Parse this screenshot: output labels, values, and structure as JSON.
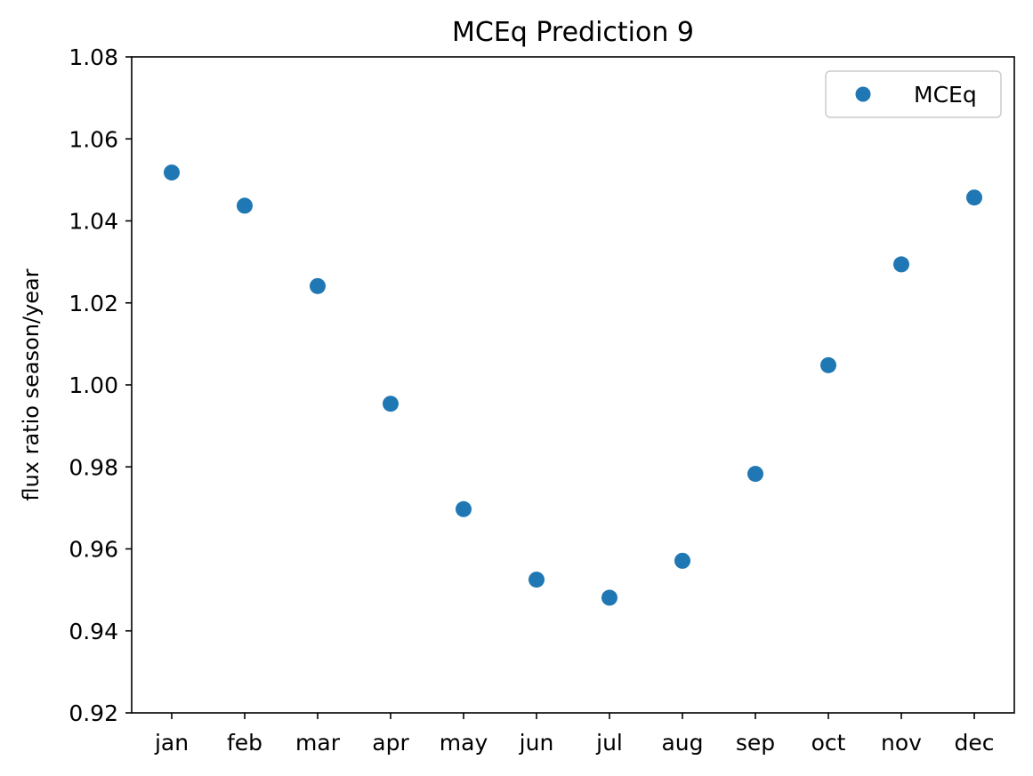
{
  "chart_data": {
    "type": "scatter",
    "title": "MCEq Prediction 9",
    "xlabel": "",
    "ylabel": "flux ratio season/year",
    "categories": [
      "jan",
      "feb",
      "mar",
      "apr",
      "may",
      "jun",
      "jul",
      "aug",
      "sep",
      "oct",
      "nov",
      "dec"
    ],
    "series": [
      {
        "name": "MCEq",
        "color": "#1f77b4",
        "values": [
          1.0518,
          1.0437,
          1.0241,
          0.9954,
          0.9697,
          0.9525,
          0.9481,
          0.9571,
          0.9783,
          1.0048,
          1.0294,
          1.0457
        ]
      }
    ],
    "ylim": [
      0.92,
      1.08
    ],
    "yticks": [
      "0.92",
      "0.94",
      "0.96",
      "0.98",
      "1.00",
      "1.02",
      "1.04",
      "1.06",
      "1.08"
    ],
    "grid": false,
    "legend_position": "top-right"
  }
}
